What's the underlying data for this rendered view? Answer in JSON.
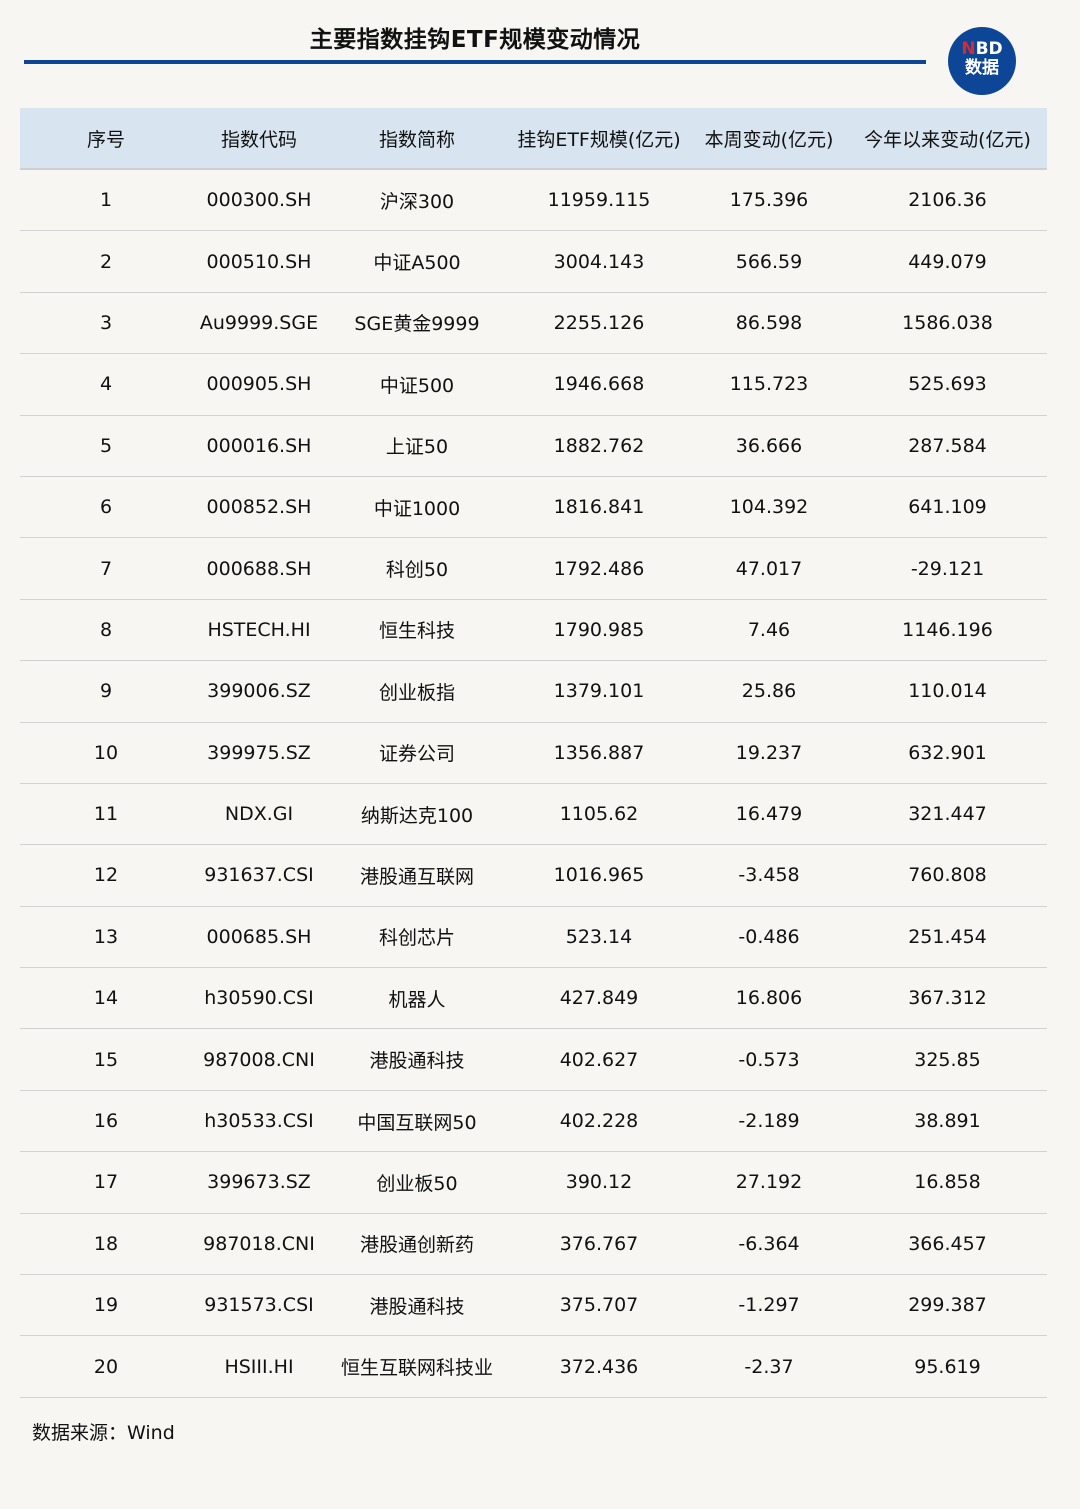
{
  "title": "主要指数挂钩ETF规模变动情况",
  "logo": {
    "top": "NBD",
    "bottom": "数据",
    "brand_color": "#0d4696",
    "accent": "#e2262b"
  },
  "table": {
    "headers": [
      "序号",
      "指数代码",
      "指数简称",
      "挂钩ETF规模(亿元)",
      "本周变动(亿元)",
      "今年以来变动(亿元)"
    ],
    "rows": [
      [
        "1",
        "000300.SH",
        "沪深300",
        "11959.115",
        "175.396",
        "2106.36"
      ],
      [
        "2",
        "000510.SH",
        "中证A500",
        "3004.143",
        "566.59",
        "449.079"
      ],
      [
        "3",
        "Au9999.SGE",
        "SGE黄金9999",
        "2255.126",
        "86.598",
        "1586.038"
      ],
      [
        "4",
        "000905.SH",
        "中证500",
        "1946.668",
        "115.723",
        "525.693"
      ],
      [
        "5",
        "000016.SH",
        "上证50",
        "1882.762",
        "36.666",
        "287.584"
      ],
      [
        "6",
        "000852.SH",
        "中证1000",
        "1816.841",
        "104.392",
        "641.109"
      ],
      [
        "7",
        "000688.SH",
        "科创50",
        "1792.486",
        "47.017",
        "-29.121"
      ],
      [
        "8",
        "HSTECH.HI",
        "恒生科技",
        "1790.985",
        "7.46",
        "1146.196"
      ],
      [
        "9",
        "399006.SZ",
        "创业板指",
        "1379.101",
        "25.86",
        "110.014"
      ],
      [
        "10",
        "399975.SZ",
        "证券公司",
        "1356.887",
        "19.237",
        "632.901"
      ],
      [
        "11",
        "NDX.GI",
        "纳斯达克100",
        "1105.62",
        "16.479",
        "321.447"
      ],
      [
        "12",
        "931637.CSI",
        "港股通互联网",
        "1016.965",
        "-3.458",
        "760.808"
      ],
      [
        "13",
        "000685.SH",
        "科创芯片",
        "523.14",
        "-0.486",
        "251.454"
      ],
      [
        "14",
        "h30590.CSI",
        "机器人",
        "427.849",
        "16.806",
        "367.312"
      ],
      [
        "15",
        "987008.CNI",
        "港股通科技",
        "402.627",
        "-0.573",
        "325.85"
      ],
      [
        "16",
        "h30533.CSI",
        "中国互联网50",
        "402.228",
        "-2.189",
        "38.891"
      ],
      [
        "17",
        "399673.SZ",
        "创业板50",
        "390.12",
        "27.192",
        "16.858"
      ],
      [
        "18",
        "987018.CNI",
        "港股通创新药",
        "376.767",
        "-6.364",
        "366.457"
      ],
      [
        "19",
        "931573.CSI",
        "港股通科技",
        "375.707",
        "-1.297",
        "299.387"
      ],
      [
        "20",
        "HSIII.HI",
        "恒生互联网科技业",
        "372.436",
        "-2.37",
        "95.619"
      ]
    ]
  },
  "source": "数据来源：Wind"
}
